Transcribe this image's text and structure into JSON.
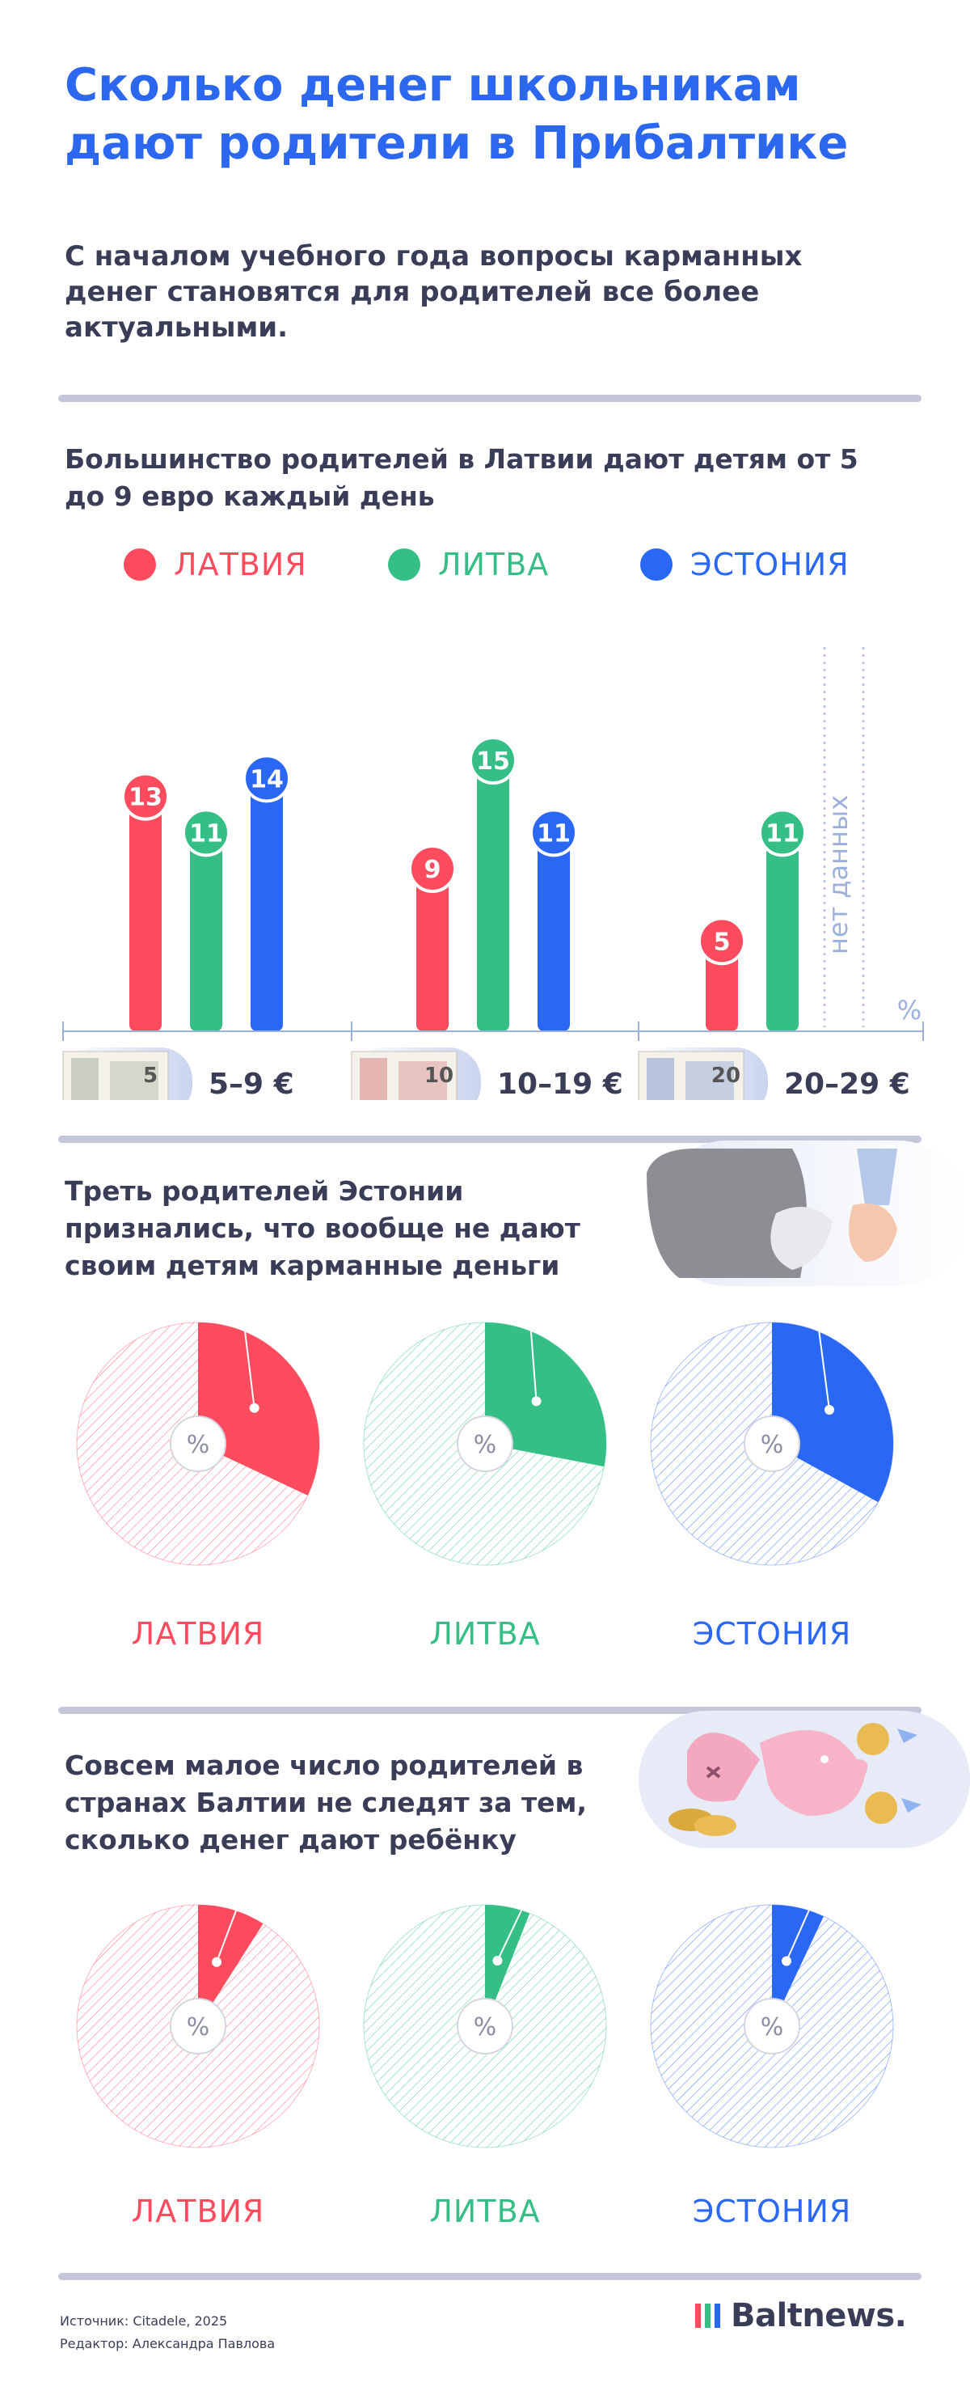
{
  "header": {
    "title": "Сколько денег школьникам дают родители в Прибалтике",
    "intro": "С началом учебного года вопросы карманных денег становятся для родителей все более актуальными."
  },
  "colors": {
    "latvia": "#ff4b5e",
    "lithuania": "#35bf86",
    "estonia": "#2a67f5",
    "axis": "#9bb0db",
    "divider": "#c4c7d9"
  },
  "legend": [
    {
      "label": "ЛАТВИЯ",
      "color": "#ff4b5e"
    },
    {
      "label": "ЛИТВА",
      "color": "#35bf86"
    },
    {
      "label": "ЭСТОНИЯ",
      "color": "#2a67f5"
    }
  ],
  "section1": {
    "title": "Большинство родителей в Латвии дают детям от 5 до 9 евро каждый день"
  },
  "section2": {
    "title": "Треть родителей Эстонии признались, что вообще не дают своим детям карманные деньги"
  },
  "section3": {
    "title": "Совсем малое число родителей в странах Балтии не следят за тем, сколько денег дают ребёнку"
  },
  "chart_data": [
    {
      "type": "bar",
      "categories": [
        "5–9 €",
        "10–19 €",
        "20–29 €"
      ],
      "series": [
        {
          "name": "ЛАТВИЯ",
          "values": [
            13,
            9,
            5
          ],
          "color": "#ff4b5e"
        },
        {
          "name": "ЛИТВА",
          "values": [
            11,
            15,
            11
          ],
          "color": "#35bf86"
        },
        {
          "name": "ЭСТОНИЯ",
          "values": [
            14,
            11,
            null
          ],
          "color": "#2a67f5"
        }
      ],
      "unit_label": "%",
      "no_data_label": "нет данных",
      "banknotes": [
        "5",
        "10",
        "20"
      ],
      "ylim": [
        0,
        15
      ]
    },
    {
      "type": "pie",
      "slices": [
        {
          "name": "ЛАТВИЯ",
          "value": 32,
          "color": "#ff4b5e"
        },
        {
          "name": "ЛИТВА",
          "value": 28,
          "color": "#35bf86"
        },
        {
          "name": "ЭСТОНИЯ",
          "value": 33,
          "color": "#2a67f5"
        }
      ],
      "center_label": "%"
    },
    {
      "type": "pie",
      "slices": [
        {
          "name": "ЛАТВИЯ",
          "value": 9,
          "color": "#ff4b5e"
        },
        {
          "name": "ЛИТВА",
          "value": 6,
          "color": "#35bf86"
        },
        {
          "name": "ЭСТОНИЯ",
          "value": 7,
          "color": "#2a67f5"
        }
      ],
      "center_label": "%"
    }
  ],
  "footer": {
    "source": "Источник: Citadele, 2025",
    "editor": "Редактор: Александра Павлова",
    "brand": "Baltnews."
  }
}
